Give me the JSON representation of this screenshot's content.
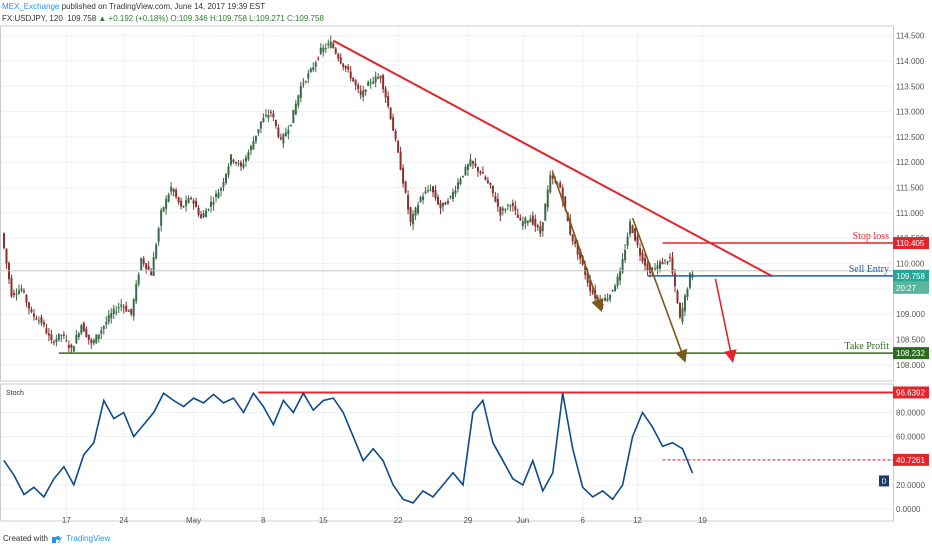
{
  "header": {
    "line1_brand": "MEX_Exchange",
    "line1_rest": "published on TradingView.com, June 14, 2017 19:39 EST",
    "symbol": "FX:USDJPY, 120",
    "last": "109.758",
    "change": "+0.192 (+0.18%)",
    "open": "O:109.346",
    "high": "H:109.758",
    "low": "L:109.271",
    "close": "C:109.758"
  },
  "footer": {
    "created_with": "Created with",
    "brand": "TradingView"
  },
  "colors": {
    "up_candle": "#3a6b48",
    "down_candle": "#8b2e2e",
    "trendline": "#e3242b",
    "stop_loss": "#e3242b",
    "sell_entry": "#1f5fa8",
    "take_profit": "#2e6b1f",
    "stoch_line": "#0e4a8a",
    "arrow_brown": "#7a5a1a"
  },
  "annotations": {
    "stop_loss": {
      "label": "Stop loss",
      "value": "110.405"
    },
    "sell_entry": {
      "label": "Sell Entry",
      "value": "109.758",
      "sub": "20:27"
    },
    "take_profit": {
      "label": "Take Profit",
      "value": "108.232"
    },
    "stoch_upper": "96.6392",
    "stoch_lower": "40.7261"
  },
  "chart_data": [
    {
      "type": "line",
      "title": "FX:USDJPY, 120",
      "x_ticks": [
        "17",
        "24",
        "May",
        "8",
        "15",
        "22",
        "29",
        "Jun",
        "6",
        "12",
        "19"
      ],
      "y_ticks": [
        "108.000",
        "108.500",
        "109.000",
        "109.500",
        "110.000",
        "110.500",
        "111.000",
        "111.500",
        "112.000",
        "112.500",
        "113.000",
        "113.500",
        "114.000",
        "114.500"
      ],
      "ylim": [
        107.8,
        114.65
      ],
      "x_range_days": [
        0,
        69
      ],
      "price_path": [
        [
          0,
          110.6
        ],
        [
          1,
          109.4
        ],
        [
          2,
          109.5
        ],
        [
          3,
          109.0
        ],
        [
          4,
          108.85
        ],
        [
          5,
          108.45
        ],
        [
          6,
          108.6
        ],
        [
          7,
          108.3
        ],
        [
          8,
          108.8
        ],
        [
          9,
          108.4
        ],
        [
          10,
          108.7
        ],
        [
          11,
          109.0
        ],
        [
          12,
          109.2
        ],
        [
          13,
          109.0
        ],
        [
          14,
          110.1
        ],
        [
          15,
          109.8
        ],
        [
          16,
          111.0
        ],
        [
          17,
          111.5
        ],
        [
          18,
          111.1
        ],
        [
          19,
          111.3
        ],
        [
          20,
          110.9
        ],
        [
          21,
          111.2
        ],
        [
          22,
          111.5
        ],
        [
          23,
          112.1
        ],
        [
          24,
          111.9
        ],
        [
          25,
          112.3
        ],
        [
          26,
          112.8
        ],
        [
          27,
          113.0
        ],
        [
          28,
          112.4
        ],
        [
          29,
          112.8
        ],
        [
          30,
          113.5
        ],
        [
          31,
          113.8
        ],
        [
          32,
          114.2
        ],
        [
          33,
          114.35
        ],
        [
          34,
          114.0
        ],
        [
          35,
          113.7
        ],
        [
          36,
          113.3
        ],
        [
          37,
          113.6
        ],
        [
          38,
          113.7
        ],
        [
          39,
          112.9
        ],
        [
          40,
          111.9
        ],
        [
          41,
          110.8
        ],
        [
          42,
          111.3
        ],
        [
          43,
          111.5
        ],
        [
          44,
          111.1
        ],
        [
          45,
          111.3
        ],
        [
          46,
          111.7
        ],
        [
          47,
          112.0
        ],
        [
          48,
          111.8
        ],
        [
          49,
          111.5
        ],
        [
          50,
          111.0
        ],
        [
          51,
          111.2
        ],
        [
          52,
          110.8
        ],
        [
          53,
          110.9
        ],
        [
          54,
          110.6
        ],
        [
          55,
          111.7
        ],
        [
          56,
          111.5
        ],
        [
          57,
          110.6
        ],
        [
          58,
          110.1
        ],
        [
          59,
          109.5
        ],
        [
          60,
          109.2
        ],
        [
          61,
          109.4
        ],
        [
          62,
          109.8
        ],
        [
          63,
          110.8
        ],
        [
          64,
          110.2
        ],
        [
          65,
          109.8
        ],
        [
          66,
          110.0
        ],
        [
          67,
          110.1
        ],
        [
          68,
          108.9
        ],
        [
          69,
          109.758
        ]
      ],
      "trendline": [
        [
          33,
          114.4
        ],
        [
          77,
          109.75
        ]
      ],
      "levels": {
        "stop_loss": 110.405,
        "sell_entry": 109.758,
        "take_profit": 108.232,
        "current": 109.758
      },
      "arrows": [
        {
          "from": [
            55,
            111.8
          ],
          "to": [
            59.8,
            109.1
          ],
          "color": "brown"
        },
        {
          "from": [
            63,
            110.9
          ],
          "to": [
            68.2,
            108.1
          ],
          "color": "brown"
        },
        {
          "from": [
            71.3,
            109.7
          ],
          "to": [
            73,
            108.1
          ],
          "color": "red"
        }
      ]
    },
    {
      "type": "line",
      "title": "Stoch",
      "y_ticks": [
        "0.0000",
        "20.0000",
        "40.0000",
        "60.0000",
        "80.0000"
      ],
      "ylim": [
        -5,
        102
      ],
      "series": [
        {
          "values": [
            [
              0,
              40
            ],
            [
              1,
              28
            ],
            [
              2,
              12
            ],
            [
              3,
              18
            ],
            [
              4,
              10
            ],
            [
              5,
              25
            ],
            [
              6,
              35
            ],
            [
              7,
              20
            ],
            [
              8,
              45
            ],
            [
              9,
              55
            ],
            [
              10,
              90
            ],
            [
              11,
              75
            ],
            [
              12,
              80
            ],
            [
              13,
              60
            ],
            [
              14,
              70
            ],
            [
              15,
              80
            ],
            [
              16,
              96
            ],
            [
              17,
              90
            ],
            [
              18,
              85
            ],
            [
              19,
              92
            ],
            [
              20,
              88
            ],
            [
              21,
              95
            ],
            [
              22,
              88
            ],
            [
              23,
              92
            ],
            [
              24,
              80
            ],
            [
              25,
              96
            ],
            [
              26,
              85
            ],
            [
              27,
              70
            ],
            [
              28,
              90
            ],
            [
              29,
              80
            ],
            [
              30,
              96
            ],
            [
              31,
              82
            ],
            [
              32,
              90
            ],
            [
              33,
              92
            ],
            [
              34,
              80
            ],
            [
              35,
              60
            ],
            [
              36,
              40
            ],
            [
              37,
              50
            ],
            [
              38,
              40
            ],
            [
              39,
              20
            ],
            [
              40,
              8
            ],
            [
              41,
              5
            ],
            [
              42,
              15
            ],
            [
              43,
              10
            ],
            [
              44,
              20
            ],
            [
              45,
              30
            ],
            [
              46,
              20
            ],
            [
              47,
              80
            ],
            [
              48,
              90
            ],
            [
              49,
              55
            ],
            [
              50,
              40
            ],
            [
              51,
              25
            ],
            [
              52,
              20
            ],
            [
              53,
              40
            ],
            [
              54,
              15
            ],
            [
              55,
              30
            ],
            [
              56,
              96
            ],
            [
              57,
              50
            ],
            [
              58,
              18
            ],
            [
              59,
              10
            ],
            [
              60,
              15
            ],
            [
              61,
              8
            ],
            [
              62,
              20
            ],
            [
              63,
              60
            ],
            [
              64,
              80
            ],
            [
              65,
              68
            ],
            [
              66,
              52
            ],
            [
              67,
              55
            ],
            [
              68,
              50
            ],
            [
              69,
              30
            ]
          ]
        }
      ],
      "levels": {
        "upper": 96.6392,
        "lower": 40.7261
      }
    }
  ]
}
